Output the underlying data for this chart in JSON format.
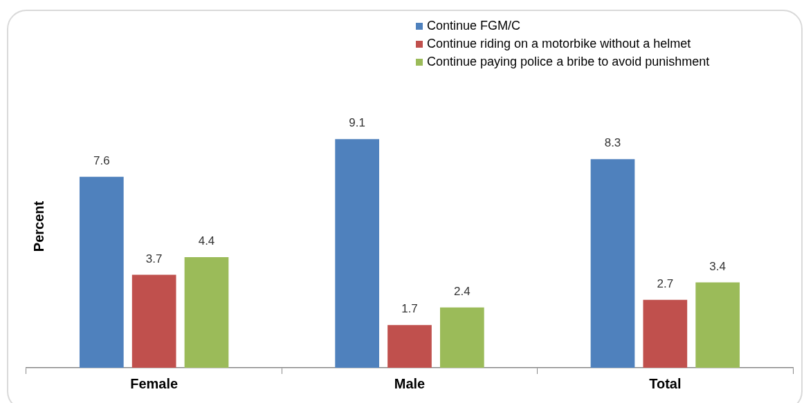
{
  "chart_data": {
    "type": "bar",
    "ylabel": "Percent",
    "categories": [
      "Female",
      "Male",
      "Total"
    ],
    "series": [
      {
        "name": "Continue FGM/C",
        "color": "#4f81bd",
        "values": [
          7.6,
          9.1,
          8.3
        ]
      },
      {
        "name": "Continue riding on a motorbike without a helmet",
        "color": "#c0504d",
        "values": [
          3.7,
          1.7,
          2.7
        ]
      },
      {
        "name": "Continue paying police a bribe to avoid punishment",
        "color": "#9bbb59",
        "values": [
          4.4,
          2.4,
          3.4
        ]
      }
    ],
    "tick_labels": "x",
    "data_labels": true,
    "legend": "top right",
    "grid": false
  }
}
